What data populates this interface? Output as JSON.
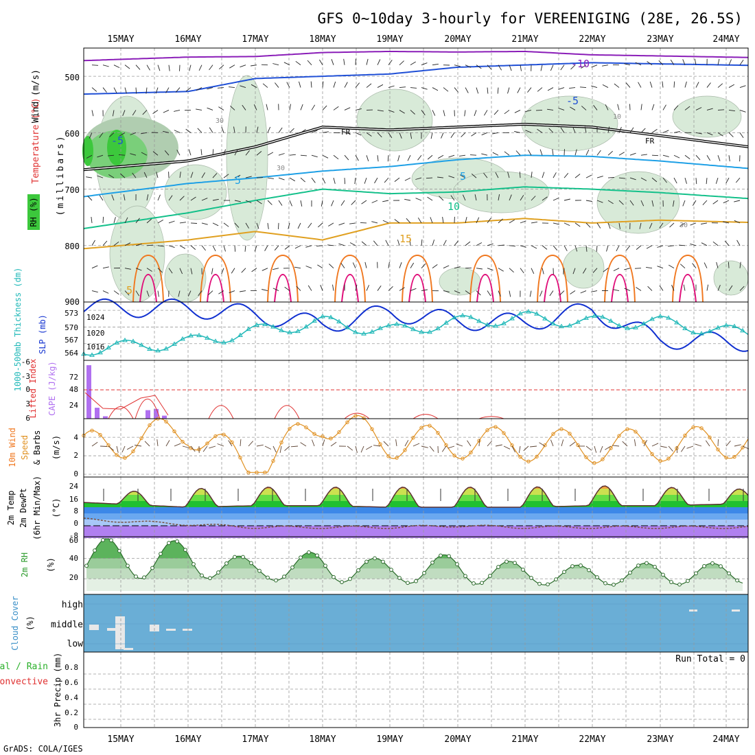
{
  "page": {
    "title": "GFS 0~10day 3-hourly for VEREENIGING (28E, 26.5S)",
    "footer": "GrADS: COLA/IGES"
  },
  "colors": {
    "purple": "#8a1db8",
    "blue": "#1f4fd6",
    "cyan": "#1ea0e6",
    "teal": "#13c08a",
    "gold": "#e0a020",
    "orange": "#f07820",
    "magenta": "#e0107a",
    "rh_dark": "#3cc83c",
    "rh_light": "#d8ead8",
    "slp": "#1030d0",
    "thick": "#20b8b8",
    "cape": "#b070f0",
    "li": "#e03030",
    "wind": "#e09020",
    "temp_fill": "#2a9a2a",
    "dew_fill": "#3c78f0",
    "rh2m_fill": "#58b058",
    "cloud": "#6aaed6"
  },
  "x_axis": {
    "days": [
      "15MAY",
      "16MAY",
      "17MAY",
      "18MAY",
      "19MAY",
      "20MAY",
      "21MAY",
      "22MAY",
      "23MAY",
      "24MAY"
    ]
  },
  "panels": {
    "upper": {
      "ylabel_wind": "Wind (m/s)",
      "ylabel_temp": "Temperature (°C)",
      "ylabel_mb": "(millibars)",
      "rh_label": "RH (%)",
      "yticks": [
        "500",
        "600",
        "700",
        "800",
        "900"
      ],
      "contour_labels": {
        "m10": "-10",
        "m5a": "-5",
        "m5b": "-5",
        "fr1": "FR",
        "fr2": "FR",
        "p5a": "5",
        "p5b": "5",
        "p10": "10",
        "p15": "15",
        "p5low": "5",
        "rh30a": "30",
        "rh30b": "30",
        "rh30c": "30",
        "rh10": "10"
      }
    },
    "slp": {
      "ylabel_slp": "SLP (mb)",
      "ylabel_thick": "1000-500mb Thickness (dm)",
      "left_ticks": [
        "573",
        "570",
        "567",
        "564"
      ],
      "right_ticks": [
        "1024",
        "1020",
        "1016"
      ]
    },
    "cape": {
      "ylabel_cape": "CAPE (J/kg)",
      "ylabel_li": "Lifted Index",
      "li_ticks": [
        "-6",
        "-3",
        "0",
        "3",
        "6"
      ],
      "cape_ticks": [
        "72",
        "48",
        "24"
      ]
    },
    "wind10": {
      "ylabel_1": "10m Wind",
      "ylabel_2": "Speed",
      "ylabel_3": "& Barbs",
      "unit": "(m/s)",
      "ticks": [
        "4",
        "2",
        "0"
      ]
    },
    "temp2m": {
      "ylabel_1": "2m Temp",
      "ylabel_2": "2m DewPt",
      "ylabel_3": "(6hr Min/Max)",
      "unit": "(°C)",
      "ticks": [
        "24",
        "16",
        "8",
        "0",
        "-8"
      ]
    },
    "rh2m": {
      "ylabel": "2m RH",
      "unit": "(%)",
      "ticks": [
        "60",
        "40",
        "20"
      ]
    },
    "cloud": {
      "ylabel": "Cloud Cover",
      "unit": "(%)",
      "levels": [
        "high",
        "middle",
        "low"
      ]
    },
    "precip": {
      "ylabel_1": "Total / Rain",
      "ylabel_2": "Convective",
      "ylabel_3": "3hr Precip (mm)",
      "run_total": "Run Total = 0",
      "ticks": [
        "0.8",
        "0.6",
        "0.4",
        "0.2",
        "0"
      ]
    }
  },
  "chart_data": [
    {
      "type": "line",
      "title": "GFS 0~10day 3-hourly for VEREENIGING (28E, 26.5S)",
      "panel": "Upper-air temperature contours, RH and wind (pressure vs time)",
      "x": [
        "15MAY",
        "16MAY",
        "17MAY",
        "18MAY",
        "19MAY",
        "20MAY",
        "21MAY",
        "22MAY",
        "23MAY",
        "24MAY"
      ],
      "ylabel": "millibars",
      "ylim": [
        450,
        900
      ],
      "series": [
        {
          "name": "-10",
          "values": [
            470,
            466,
            465,
            458,
            456,
            457,
            456,
            462,
            464,
            466
          ]
        },
        {
          "name": "-5",
          "values": [
            530,
            527,
            504,
            500,
            496,
            484,
            480,
            476,
            478,
            480
          ]
        },
        {
          "name": "FR",
          "values": [
            660,
            650,
            625,
            590,
            595,
            590,
            585,
            590,
            605,
            620
          ]
        },
        {
          "name": "5",
          "values": [
            705,
            690,
            680,
            668,
            660,
            648,
            640,
            642,
            650,
            660
          ]
        },
        {
          "name": "10",
          "values": [
            760,
            742,
            720,
            700,
            708,
            705,
            696,
            700,
            706,
            714
          ]
        },
        {
          "name": "15",
          "values": [
            800,
            790,
            775,
            790,
            760,
            760,
            752,
            760,
            755,
            758
          ]
        }
      ]
    },
    {
      "type": "line",
      "panel": "SLP and 1000-500mb Thickness",
      "x": [
        "15MAY",
        "16MAY",
        "17MAY",
        "18MAY",
        "19MAY",
        "20MAY",
        "21MAY",
        "22MAY",
        "23MAY",
        "24MAY"
      ],
      "series": [
        {
          "name": "SLP (mb)",
          "values": [
            1024.5,
            1024.5,
            1023.0,
            1020.5,
            1023.5,
            1021.5,
            1021.0,
            1024.0,
            1017.0,
            1016.5
          ]
        },
        {
          "name": "1000-500mb Thickness (dm)",
          "values": [
            565.0,
            566.0,
            568.5,
            570.5,
            568.5,
            570.5,
            571.5,
            570.5,
            570.5,
            568.5
          ]
        }
      ]
    },
    {
      "type": "bar",
      "panel": "CAPE and Lifted Index",
      "x": [
        "15MAY",
        "16MAY",
        "17MAY",
        "18MAY",
        "19MAY",
        "20MAY",
        "21MAY",
        "22MAY",
        "23MAY",
        "24MAY"
      ],
      "series": [
        {
          "name": "CAPE (J/kg)",
          "values": [
            88,
            16,
            0,
            0,
            0,
            0,
            0,
            0,
            0,
            0
          ]
        },
        {
          "name": "Lifted Index",
          "values": [
            2,
            5,
            3,
            2,
            6,
            6,
            6,
            6,
            6,
            6
          ]
        }
      ]
    },
    {
      "type": "line",
      "panel": "10m Wind Speed & Barbs",
      "x": [
        "15MAY",
        "16MAY",
        "17MAY",
        "18MAY",
        "19MAY",
        "20MAY",
        "21MAY",
        "22MAY",
        "23MAY",
        "24MAY"
      ],
      "ylabel": "m/s",
      "series": [
        {
          "name": "10m Wind Speed",
          "values": [
            3.5,
            4.8,
            0.5,
            5.8,
            3.5,
            3.5,
            3.2,
            3.0,
            3.2,
            3.5
          ]
        }
      ]
    },
    {
      "type": "area",
      "panel": "2m Temp / 2m DewPt",
      "x": [
        "15MAY",
        "16MAY",
        "17MAY",
        "18MAY",
        "19MAY",
        "20MAY",
        "21MAY",
        "22MAY",
        "23MAY",
        "24MAY"
      ],
      "ylabel": "°C",
      "series": [
        {
          "name": "2m Temp max",
          "values": [
            22,
            24,
            25,
            25,
            25,
            25,
            25,
            26,
            25,
            24
          ]
        },
        {
          "name": "2m Temp min",
          "values": [
            14,
            12,
            13,
            13,
            12,
            12,
            12,
            13,
            13,
            14
          ]
        },
        {
          "name": "2m DewPt",
          "values": [
            3,
            1,
            -1,
            -1,
            -1,
            0,
            -1,
            -1,
            -1,
            -1
          ]
        }
      ]
    },
    {
      "type": "area",
      "panel": "2m RH",
      "x": [
        "15MAY",
        "16MAY",
        "17MAY",
        "18MAY",
        "19MAY",
        "20MAY",
        "21MAY",
        "22MAY",
        "23MAY",
        "24MAY"
      ],
      "ylabel": "%",
      "series": [
        {
          "name": "2m RH max",
          "values": [
            59,
            57,
            38,
            48,
            38,
            45,
            35,
            33,
            36,
            35
          ]
        },
        {
          "name": "2m RH min",
          "values": [
            20,
            21,
            19,
            17,
            16,
            15,
            14,
            14,
            14,
            15
          ]
        }
      ]
    },
    {
      "type": "bar",
      "panel": "3hr Precip",
      "x": [
        "15MAY",
        "16MAY",
        "17MAY",
        "18MAY",
        "19MAY",
        "20MAY",
        "21MAY",
        "22MAY",
        "23MAY",
        "24MAY"
      ],
      "ylabel": "mm",
      "ylim": [
        0,
        1
      ],
      "series": [
        {
          "name": "3hr Precip",
          "values": [
            0,
            0,
            0,
            0,
            0,
            0,
            0,
            0,
            0,
            0
          ]
        }
      ]
    }
  ]
}
